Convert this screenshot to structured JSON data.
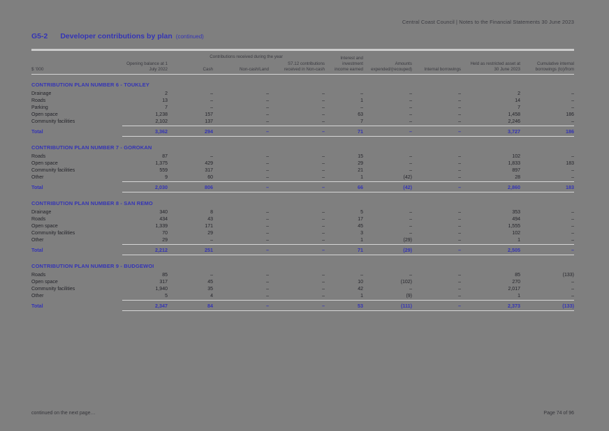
{
  "colors": {
    "accent_blue": "#3434b6",
    "page_background": "#7f7f7f"
  },
  "document": {
    "header_right": "Central Coast Council | Notes to the Financial Statements 30 June 2023",
    "title_code": "G5-2",
    "title": "Developer contributions by plan",
    "title_suffix": "(continued)",
    "footer_left": "continued on the next page…",
    "footer_right": "Page 74 of 96"
  },
  "table": {
    "unit_label": "$ '000",
    "group_header": "Contributions received during the year",
    "total_label": "Total",
    "columns": {
      "opening": "Opening balance at 1 July 2022",
      "cash": "Cash",
      "land": "Non-cash/Land",
      "noncash": "S7.12 contributions received in Non-cash",
      "interest": "Interest and investment income earned",
      "expended": "Amounts expended/(recouped)",
      "internal": "Internal borrowings",
      "held": "Held as restricted asset at 30 June 2023",
      "cumulative": "Cumulative internal borrowings (to)/from"
    },
    "sections": [
      {
        "title": "CONTRIBUTION PLAN NUMBER 6 - TOUKLEY",
        "rows": [
          {
            "label": "Drainage",
            "values": [
              "2",
              "–",
              "–",
              "–",
              "–",
              "–",
              "–",
              "2",
              "–"
            ]
          },
          {
            "label": "Roads",
            "values": [
              "13",
              "–",
              "–",
              "–",
              "1",
              "–",
              "–",
              "14",
              "–"
            ]
          },
          {
            "label": "Parking",
            "values": [
              "7",
              "–",
              "–",
              "–",
              "–",
              "–",
              "–",
              "7",
              "–"
            ]
          },
          {
            "label": "Open space",
            "values": [
              "1,238",
              "157",
              "–",
              "–",
              "63",
              "–",
              "–",
              "1,458",
              "186"
            ]
          },
          {
            "label": "Community facilities",
            "values": [
              "2,102",
              "137",
              "–",
              "–",
              "7",
              "–",
              "–",
              "2,246",
              "–"
            ]
          }
        ],
        "total": [
          "3,362",
          "294",
          "–",
          "–",
          "71",
          "–",
          "–",
          "3,727",
          "186"
        ]
      },
      {
        "title": "CONTRIBUTION PLAN NUMBER 7 - GOROKAN",
        "rows": [
          {
            "label": "Roads",
            "values": [
              "87",
              "–",
              "–",
              "–",
              "15",
              "–",
              "–",
              "102",
              "–"
            ]
          },
          {
            "label": "Open space",
            "values": [
              "1,375",
              "429",
              "–",
              "–",
              "29",
              "–",
              "–",
              "1,833",
              "183"
            ]
          },
          {
            "label": "Community facilities",
            "values": [
              "559",
              "317",
              "–",
              "–",
              "21",
              "–",
              "–",
              "897",
              "–"
            ]
          },
          {
            "label": "Other",
            "values": [
              "9",
              "60",
              "–",
              "–",
              "1",
              "(42)",
              "–",
              "28",
              "–"
            ]
          }
        ],
        "total": [
          "2,030",
          "806",
          "–",
          "–",
          "66",
          "(42)",
          "–",
          "2,860",
          "183"
        ]
      },
      {
        "title": "CONTRIBUTION PLAN NUMBER 8 - SAN REMO",
        "rows": [
          {
            "label": "Drainage",
            "values": [
              "340",
              "8",
              "–",
              "–",
              "5",
              "–",
              "–",
              "353",
              "–"
            ]
          },
          {
            "label": "Roads",
            "values": [
              "434",
              "43",
              "–",
              "–",
              "17",
              "–",
              "–",
              "494",
              "–"
            ]
          },
          {
            "label": "Open space",
            "values": [
              "1,339",
              "171",
              "–",
              "–",
              "45",
              "–",
              "–",
              "1,555",
              "–"
            ]
          },
          {
            "label": "Community facilities",
            "values": [
              "70",
              "29",
              "–",
              "–",
              "3",
              "–",
              "–",
              "102",
              "–"
            ]
          },
          {
            "label": "Other",
            "values": [
              "29",
              "–",
              "–",
              "–",
              "1",
              "(29)",
              "–",
              "1",
              "–"
            ]
          }
        ],
        "total": [
          "2,212",
          "251",
          "–",
          "–",
          "71",
          "(29)",
          "–",
          "2,505",
          "–"
        ]
      },
      {
        "title": "CONTRIBUTION PLAN NUMBER 9 - BUDGEWOI",
        "rows": [
          {
            "label": "Roads",
            "values": [
              "85",
              "–",
              "–",
              "–",
              "–",
              "–",
              "–",
              "85",
              "(133)"
            ]
          },
          {
            "label": "Open space",
            "values": [
              "317",
              "45",
              "–",
              "–",
              "10",
              "(102)",
              "–",
              "270",
              "–"
            ]
          },
          {
            "label": "Community facilities",
            "values": [
              "1,940",
              "35",
              "–",
              "–",
              "42",
              "–",
              "–",
              "2,017",
              "–"
            ]
          },
          {
            "label": "Other",
            "values": [
              "5",
              "4",
              "–",
              "–",
              "1",
              "(9)",
              "–",
              "1",
              "–"
            ]
          }
        ],
        "total": [
          "2,347",
          "84",
          "–",
          "–",
          "53",
          "(111)",
          "–",
          "2,373",
          "(133)"
        ]
      }
    ]
  }
}
